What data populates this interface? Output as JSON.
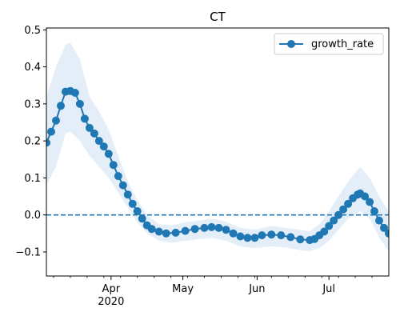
{
  "chart_data": {
    "type": "line",
    "title": "CT",
    "x_start_date": "2020-03-05",
    "x_end_date": "2020-07-26",
    "ylim": [
      -0.165,
      0.505
    ],
    "y_ticks": [
      -0.1,
      0.0,
      0.1,
      0.2,
      0.3,
      0.4,
      0.5
    ],
    "y_tick_labels": [
      "−0.1",
      "0.0",
      "0.1",
      "0.2",
      "0.3",
      "0.4",
      "0.5"
    ],
    "x_major_ticks": [
      {
        "date": "2020-04-01",
        "label": "Apr",
        "sublabel": "2020"
      },
      {
        "date": "2020-05-01",
        "label": "May",
        "sublabel": ""
      },
      {
        "date": "2020-06-01",
        "label": "Jun",
        "sublabel": ""
      },
      {
        "date": "2020-07-01",
        "label": "Jul",
        "sublabel": ""
      }
    ],
    "reference_line": {
      "y": 0.0,
      "style": "dashed",
      "color": "#1f77b4"
    },
    "legend": {
      "position": "top-right",
      "entries": [
        "growth_rate"
      ]
    },
    "series": [
      {
        "name": "growth_rate",
        "color": "#1f77b4",
        "marker": "circle",
        "band_color": "#e4eef8",
        "points": [
          [
            "2020-03-05",
            0.195
          ],
          [
            "2020-03-07",
            0.225
          ],
          [
            "2020-03-09",
            0.255
          ],
          [
            "2020-03-11",
            0.295
          ],
          [
            "2020-03-13",
            0.333
          ],
          [
            "2020-03-15",
            0.335
          ],
          [
            "2020-03-17",
            0.33
          ],
          [
            "2020-03-19",
            0.3
          ],
          [
            "2020-03-21",
            0.26
          ],
          [
            "2020-03-23",
            0.235
          ],
          [
            "2020-03-25",
            0.22
          ],
          [
            "2020-03-27",
            0.2
          ],
          [
            "2020-03-29",
            0.185
          ],
          [
            "2020-03-31",
            0.165
          ],
          [
            "2020-04-02",
            0.135
          ],
          [
            "2020-04-04",
            0.105
          ],
          [
            "2020-04-06",
            0.08
          ],
          [
            "2020-04-08",
            0.055
          ],
          [
            "2020-04-10",
            0.03
          ],
          [
            "2020-04-12",
            0.01
          ],
          [
            "2020-04-14",
            -0.01
          ],
          [
            "2020-04-16",
            -0.028
          ],
          [
            "2020-04-18",
            -0.038
          ],
          [
            "2020-04-21",
            -0.045
          ],
          [
            "2020-04-24",
            -0.05
          ],
          [
            "2020-04-28",
            -0.048
          ],
          [
            "2020-05-02",
            -0.043
          ],
          [
            "2020-05-06",
            -0.038
          ],
          [
            "2020-05-10",
            -0.035
          ],
          [
            "2020-05-13",
            -0.033
          ],
          [
            "2020-05-16",
            -0.035
          ],
          [
            "2020-05-19",
            -0.04
          ],
          [
            "2020-05-22",
            -0.05
          ],
          [
            "2020-05-25",
            -0.058
          ],
          [
            "2020-05-28",
            -0.062
          ],
          [
            "2020-05-31",
            -0.062
          ],
          [
            "2020-06-03",
            -0.055
          ],
          [
            "2020-06-07",
            -0.053
          ],
          [
            "2020-06-11",
            -0.055
          ],
          [
            "2020-06-15",
            -0.06
          ],
          [
            "2020-06-19",
            -0.066
          ],
          [
            "2020-06-23",
            -0.068
          ],
          [
            "2020-06-25",
            -0.065
          ],
          [
            "2020-06-27",
            -0.055
          ],
          [
            "2020-06-29",
            -0.045
          ],
          [
            "2020-07-01",
            -0.03
          ],
          [
            "2020-07-03",
            -0.015
          ],
          [
            "2020-07-05",
            0.0
          ],
          [
            "2020-07-07",
            0.015
          ],
          [
            "2020-07-09",
            0.03
          ],
          [
            "2020-07-11",
            0.045
          ],
          [
            "2020-07-13",
            0.055
          ],
          [
            "2020-07-14",
            0.058
          ],
          [
            "2020-07-16",
            0.05
          ],
          [
            "2020-07-18",
            0.035
          ],
          [
            "2020-07-20",
            0.01
          ],
          [
            "2020-07-22",
            -0.015
          ],
          [
            "2020-07-24",
            -0.035
          ],
          [
            "2020-07-26",
            -0.05
          ],
          [
            "2020-07-28",
            -0.055
          ]
        ],
        "band": [
          [
            "2020-03-05",
            0.08,
            0.32
          ],
          [
            "2020-03-09",
            0.13,
            0.4
          ],
          [
            "2020-03-13",
            0.22,
            0.46
          ],
          [
            "2020-03-15",
            0.225,
            0.465
          ],
          [
            "2020-03-19",
            0.2,
            0.42
          ],
          [
            "2020-03-23",
            0.16,
            0.32
          ],
          [
            "2020-03-27",
            0.13,
            0.28
          ],
          [
            "2020-03-31",
            0.1,
            0.23
          ],
          [
            "2020-04-04",
            0.06,
            0.16
          ],
          [
            "2020-04-08",
            0.02,
            0.09
          ],
          [
            "2020-04-12",
            -0.02,
            0.04
          ],
          [
            "2020-04-16",
            -0.05,
            0.0
          ],
          [
            "2020-04-21",
            -0.07,
            -0.025
          ],
          [
            "2020-04-26",
            -0.075,
            -0.028
          ],
          [
            "2020-05-02",
            -0.07,
            -0.02
          ],
          [
            "2020-05-08",
            -0.065,
            -0.015
          ],
          [
            "2020-05-13",
            -0.062,
            -0.01
          ],
          [
            "2020-05-19",
            -0.07,
            -0.018
          ],
          [
            "2020-05-25",
            -0.085,
            -0.035
          ],
          [
            "2020-05-31",
            -0.09,
            -0.04
          ],
          [
            "2020-06-07",
            -0.085,
            -0.03
          ],
          [
            "2020-06-13",
            -0.088,
            -0.035
          ],
          [
            "2020-06-19",
            -0.095,
            -0.04
          ],
          [
            "2020-06-23",
            -0.098,
            -0.045
          ],
          [
            "2020-06-27",
            -0.09,
            -0.025
          ],
          [
            "2020-07-01",
            -0.07,
            0.01
          ],
          [
            "2020-07-05",
            -0.04,
            0.05
          ],
          [
            "2020-07-09",
            -0.01,
            0.09
          ],
          [
            "2020-07-14",
            0.01,
            0.13
          ],
          [
            "2020-07-18",
            -0.01,
            0.1
          ],
          [
            "2020-07-22",
            -0.06,
            0.05
          ],
          [
            "2020-07-26",
            -0.1,
            0.01
          ],
          [
            "2020-07-28",
            -0.13,
            0.03
          ]
        ]
      }
    ]
  }
}
